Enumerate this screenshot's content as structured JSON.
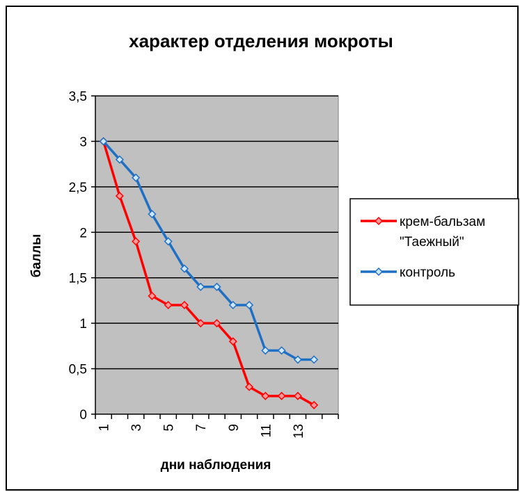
{
  "chart_data": {
    "type": "line",
    "title": "характер отделения мокроты",
    "xlabel": "дни наблюдения",
    "ylabel": "баллы",
    "x": [
      1,
      2,
      3,
      4,
      5,
      6,
      7,
      8,
      9,
      10,
      11,
      12,
      13,
      14
    ],
    "x_tick_labels": [
      "1",
      "3",
      "5",
      "7",
      "9",
      "11",
      "13"
    ],
    "x_tick_label_positions": [
      1,
      3,
      5,
      7,
      9,
      11,
      13
    ],
    "ylim": [
      0,
      3.5
    ],
    "y_ticks": [
      0,
      0.5,
      1,
      1.5,
      2,
      2.5,
      3,
      3.5
    ],
    "y_tick_labels": [
      "0",
      "0,5",
      "1",
      "1,5",
      "2",
      "2,5",
      "3",
      "3,5"
    ],
    "grid": "horizontal",
    "plot_background": "#c0c0c0",
    "legend_position": "right",
    "series": [
      {
        "name": "крем-бальзам \"Таежный\"",
        "legend_lines": [
          "крем-бальзам",
          "\"Таежный\""
        ],
        "color": "#ff0000",
        "marker_fill": "#ff9999",
        "values": [
          3.0,
          2.4,
          1.9,
          1.3,
          1.2,
          1.2,
          1.0,
          1.0,
          0.8,
          0.3,
          0.2,
          0.2,
          0.2,
          0.1
        ]
      },
      {
        "name": "контроль",
        "legend_lines": [
          "контроль"
        ],
        "color": "#1f6fc5",
        "marker_fill": "#cfe6ff",
        "values": [
          3.0,
          2.8,
          2.6,
          2.2,
          1.9,
          1.6,
          1.4,
          1.4,
          1.2,
          1.2,
          0.7,
          0.7,
          0.6,
          0.6
        ]
      }
    ]
  }
}
